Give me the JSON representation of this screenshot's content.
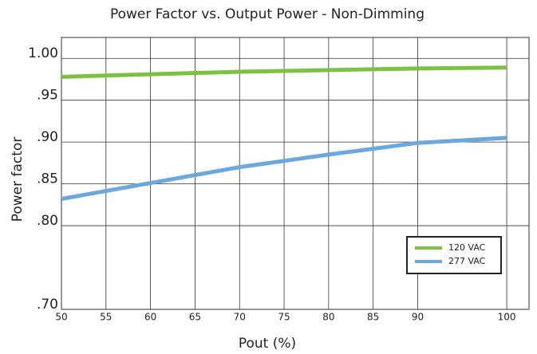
{
  "chart_data": {
    "type": "line",
    "title": "Power Factor vs. Output Power - Non-Dimming",
    "x_label": "Pout (%)",
    "y_label": "Power factor",
    "x": [
      50,
      60,
      70,
      80,
      90,
      100
    ],
    "series": [
      {
        "name": "120 VAC",
        "color": "#7cc142",
        "values": [
          0.978,
          0.981,
          0.984,
          0.986,
          0.988,
          0.989
        ]
      },
      {
        "name": "277 VAC",
        "color": "#6aa9de",
        "values": [
          0.832,
          0.851,
          0.87,
          0.885,
          0.899,
          0.905
        ]
      }
    ],
    "xlim": [
      50,
      102.5
    ],
    "xticks": [
      50,
      55,
      60,
      65,
      70,
      75,
      80,
      85,
      90,
      100
    ],
    "ylim": [
      0.7,
      1.025
    ],
    "yticks": [
      {
        "value": 0.7,
        "label": ".70"
      },
      {
        "value": 0.8,
        "label": ".80"
      },
      {
        "value": 0.85,
        "label": ".85"
      },
      {
        "value": 0.9,
        "label": ".90"
      },
      {
        "value": 0.95,
        "label": ".95"
      },
      {
        "value": 1.0,
        "label": "1.00"
      }
    ],
    "grid": true,
    "legend": "lower right"
  }
}
